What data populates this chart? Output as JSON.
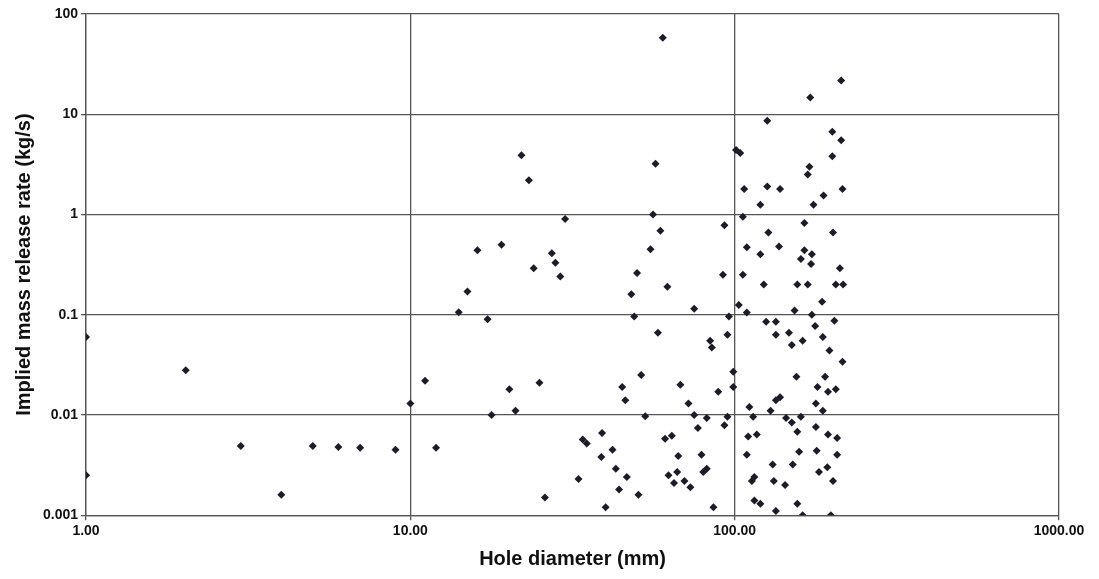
{
  "chart_data": {
    "type": "scatter",
    "xlabel": "Hole diameter (mm)",
    "ylabel": "Implied mass release rate (kg/s)",
    "log": "xy",
    "grid": true,
    "marker": "diamond",
    "xlim": [
      1,
      1000
    ],
    "ylim": [
      0.001,
      100
    ],
    "xticks": [
      {
        "value": 1,
        "label": "1.00"
      },
      {
        "value": 10,
        "label": "10.00"
      },
      {
        "value": 100,
        "label": "100.00"
      },
      {
        "value": 1000,
        "label": "1000.00"
      }
    ],
    "yticks": [
      0.001,
      0.01,
      0.1,
      1,
      10,
      100
    ],
    "series": [
      {
        "color": "#1c1c28",
        "x": [
          1.0,
          1.0,
          2.03,
          3.0,
          4.0,
          5.0,
          6.0,
          7.0,
          9.0,
          10,
          11.1,
          12.0,
          14.1,
          15,
          16.1,
          17.3,
          17.8,
          19.1,
          20.2,
          21.1,
          22,
          23.2,
          24,
          25,
          26,
          27.3,
          28,
          29,
          30,
          33,
          34,
          35,
          38.8,
          40,
          60,
          57,
          56,
          59,
          55,
          50,
          62,
          48,
          49,
          58,
          51.5,
          45,
          46,
          68,
          53,
          61,
          64,
          67,
          39,
          42,
          43,
          46.5,
          44,
          50.5,
          62.5,
          66.5,
          65,
          70,
          213,
          171,
          126,
          101,
          104,
          200,
          213,
          200,
          170,
          168,
          107,
          126,
          138,
          215,
          188,
          175,
          120,
          106,
          164,
          93,
          127,
          201,
          109,
          137,
          120,
          164,
          173,
          160,
          172,
          211,
          92,
          106,
          123,
          156,
          168,
          205,
          216,
          186,
          103,
          75,
          153,
          109,
          96,
          125,
          134,
          173,
          203,
          177,
          187,
          134,
          147,
          150,
          162,
          95,
          84,
          85,
          196,
          215,
          99,
          155,
          190,
          89,
          99,
          180,
          194,
          205,
          138,
          134,
          72,
          178,
          111,
          129,
          75,
          82,
          95,
          114,
          187,
          144,
          150,
          156,
          160,
          178,
          93,
          77,
          110,
          117,
          194,
          207,
          79,
          109,
          158,
          179,
          207,
          131,
          151,
          193,
          80,
          82,
          182,
          201,
          113,
          115,
          132,
          143,
          73,
          86,
          115,
          120,
          134,
          156,
          162,
          198
        ],
        "values": [
          0.06,
          0.0025,
          0.028,
          0.0049,
          0.0016,
          0.0049,
          0.0048,
          0.0047,
          0.0045,
          0.013,
          0.022,
          0.0047,
          0.106,
          0.17,
          0.44,
          0.09,
          0.01,
          0.5,
          0.018,
          0.011,
          3.9,
          2.2,
          0.29,
          0.021,
          0.0015,
          0.41,
          0.33,
          0.24,
          0.9,
          0.0023,
          0.0057,
          0.0052,
          0.0038,
          0.0012,
          58,
          3.2,
          1.0,
          0.69,
          0.45,
          0.26,
          0.19,
          0.16,
          0.096,
          0.066,
          0.025,
          0.019,
          0.014,
          0.02,
          0.0097,
          0.0058,
          0.0062,
          0.0039,
          0.0066,
          0.0045,
          0.0029,
          0.0024,
          0.0018,
          0.0016,
          0.0025,
          0.0027,
          0.0021,
          0.0022,
          21.7,
          14.7,
          8.6,
          4.4,
          4.1,
          6.7,
          5.5,
          3.8,
          3.0,
          2.5,
          1.8,
          1.9,
          1.8,
          1.8,
          1.55,
          1.25,
          1.25,
          0.95,
          0.82,
          0.78,
          0.66,
          0.66,
          0.47,
          0.48,
          0.4,
          0.44,
          0.4,
          0.36,
          0.32,
          0.29,
          0.25,
          0.25,
          0.2,
          0.2,
          0.2,
          0.2,
          0.2,
          0.135,
          0.125,
          0.115,
          0.11,
          0.105,
          0.096,
          0.085,
          0.085,
          0.1,
          0.087,
          0.077,
          0.06,
          0.063,
          0.066,
          0.05,
          0.055,
          0.063,
          0.055,
          0.047,
          0.044,
          0.034,
          0.027,
          0.024,
          0.024,
          0.017,
          0.019,
          0.019,
          0.017,
          0.018,
          0.015,
          0.014,
          0.013,
          0.013,
          0.012,
          0.011,
          0.01,
          0.0093,
          0.0096,
          0.0096,
          0.011,
          0.0093,
          0.0084,
          0.0068,
          0.0096,
          0.0076,
          0.0079,
          0.0074,
          0.0061,
          0.0064,
          0.0064,
          0.0059,
          0.004,
          0.004,
          0.0043,
          0.0044,
          0.004,
          0.0032,
          0.0032,
          0.003,
          0.0027,
          0.0029,
          0.0027,
          0.0022,
          0.0022,
          0.0024,
          0.0022,
          0.002,
          0.0019,
          0.0012,
          0.0014,
          0.0013,
          0.0011,
          0.0013,
          0.001,
          0.001
        ]
      }
    ]
  }
}
